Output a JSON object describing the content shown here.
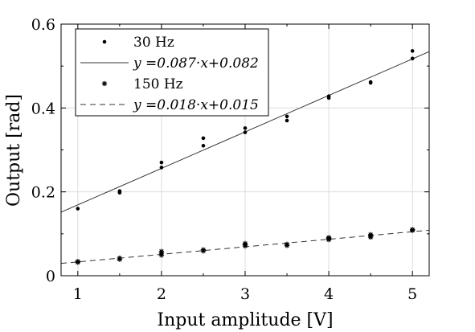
{
  "chart_data": {
    "type": "scatter",
    "title": "",
    "xlabel": "Input amplitude [V]",
    "ylabel": "Output [rad]",
    "xlim": [
      0.8,
      5.2
    ],
    "ylim": [
      0,
      0.6
    ],
    "grid": true,
    "legend_position": "top-left",
    "x_ticks": [
      1,
      2,
      3,
      4,
      5
    ],
    "x_tick_labels": [
      "1",
      "2",
      "3",
      "4",
      "5"
    ],
    "y_ticks": [
      0,
      0.2,
      0.4,
      0.6
    ],
    "y_tick_labels": [
      "0",
      "0.2",
      "0.4",
      "0.6"
    ],
    "series": [
      {
        "name": "30 Hz",
        "marker": "dot",
        "points": [
          [
            1,
            0.16
          ],
          [
            1.5,
            0.198
          ],
          [
            1.5,
            0.202
          ],
          [
            2,
            0.258
          ],
          [
            2,
            0.27
          ],
          [
            2.5,
            0.31
          ],
          [
            2.5,
            0.328
          ],
          [
            3,
            0.342
          ],
          [
            3,
            0.352
          ],
          [
            3.5,
            0.37
          ],
          [
            3.5,
            0.38
          ],
          [
            4,
            0.424
          ],
          [
            4,
            0.428
          ],
          [
            4.5,
            0.46
          ],
          [
            4.5,
            0.462
          ],
          [
            5,
            0.518
          ],
          [
            5,
            0.536
          ]
        ]
      },
      {
        "name": "150 Hz",
        "marker": "star",
        "points": [
          [
            1,
            0.032
          ],
          [
            1,
            0.034
          ],
          [
            1.5,
            0.039
          ],
          [
            1.5,
            0.042
          ],
          [
            2,
            0.049
          ],
          [
            2,
            0.054
          ],
          [
            2,
            0.058
          ],
          [
            2.5,
            0.059
          ],
          [
            2.5,
            0.062
          ],
          [
            3,
            0.071
          ],
          [
            3,
            0.074
          ],
          [
            3,
            0.077
          ],
          [
            3.5,
            0.072
          ],
          [
            3.5,
            0.075
          ],
          [
            4,
            0.086
          ],
          [
            4,
            0.089
          ],
          [
            4,
            0.091
          ],
          [
            4.5,
            0.092
          ],
          [
            4.5,
            0.095
          ],
          [
            4.5,
            0.098
          ],
          [
            5,
            0.108
          ],
          [
            5,
            0.11
          ]
        ]
      }
    ],
    "fits": [
      {
        "label": "y =0.087·x+0.082",
        "slope": 0.087,
        "intercept": 0.082,
        "style": "solid"
      },
      {
        "label": "y =0.018·x+0.015",
        "slope": 0.018,
        "intercept": 0.015,
        "style": "dashed"
      }
    ]
  }
}
